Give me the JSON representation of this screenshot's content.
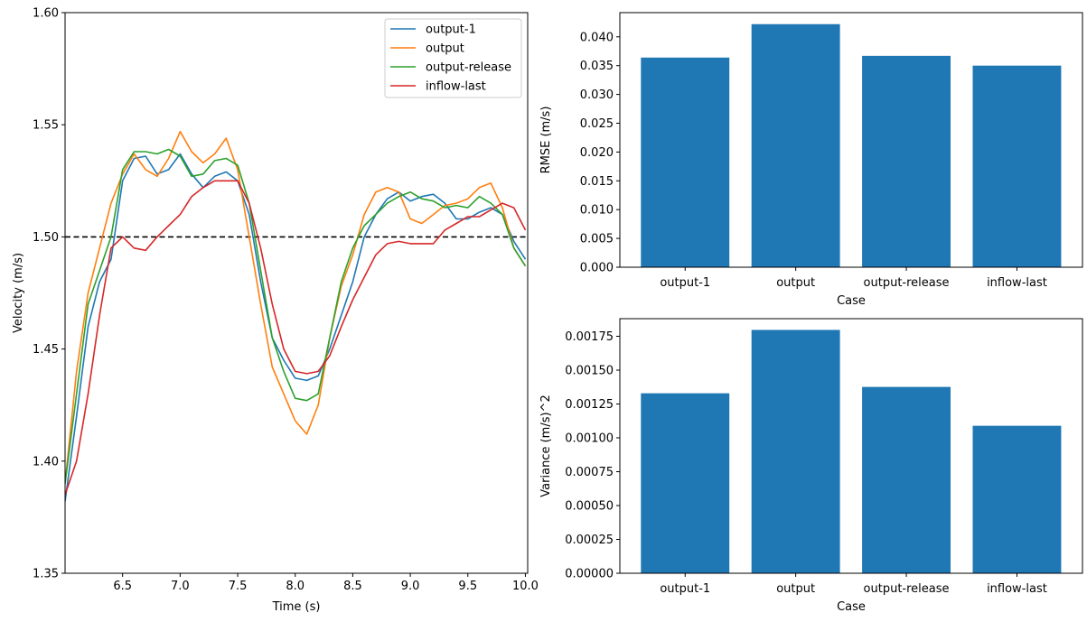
{
  "chart_data": [
    {
      "type": "line",
      "title": "",
      "xlabel": "Time (s)",
      "ylabel": "Velocity (m/s)",
      "xlim": [
        6.0,
        10.02
      ],
      "ylim": [
        1.35,
        1.6
      ],
      "xticks": [
        6.5,
        7.0,
        7.5,
        8.0,
        8.5,
        9.0,
        9.5,
        10.0
      ],
      "xtick_labels": [
        "6.5",
        "7.0",
        "7.5",
        "8.0",
        "8.5",
        "9.0",
        "9.5",
        "10.0"
      ],
      "yticks": [
        1.35,
        1.4,
        1.45,
        1.5,
        1.55,
        1.6
      ],
      "ytick_labels": [
        "1.35",
        "1.40",
        "1.45",
        "1.50",
        "1.55",
        "1.60"
      ],
      "grid": false,
      "legend_position": "top-right",
      "reference_line": {
        "y": 1.5,
        "style": "dashed",
        "color": "#000000"
      },
      "x": [
        6.0,
        6.1,
        6.2,
        6.3,
        6.4,
        6.5,
        6.6,
        6.7,
        6.8,
        6.9,
        7.0,
        7.1,
        7.2,
        7.3,
        7.4,
        7.5,
        7.6,
        7.7,
        7.8,
        7.9,
        8.0,
        8.1,
        8.2,
        8.3,
        8.4,
        8.5,
        8.6,
        8.7,
        8.8,
        8.9,
        9.0,
        9.1,
        9.2,
        9.3,
        9.4,
        9.5,
        9.6,
        9.7,
        9.8,
        9.9,
        10.0
      ],
      "series": [
        {
          "name": "output-1",
          "color": "#1f77b4",
          "values": [
            1.382,
            1.42,
            1.46,
            1.48,
            1.49,
            1.525,
            1.535,
            1.536,
            1.528,
            1.53,
            1.537,
            1.528,
            1.522,
            1.527,
            1.529,
            1.525,
            1.51,
            1.48,
            1.455,
            1.445,
            1.437,
            1.436,
            1.438,
            1.45,
            1.465,
            1.48,
            1.5,
            1.51,
            1.517,
            1.52,
            1.516,
            1.518,
            1.519,
            1.515,
            1.508,
            1.508,
            1.511,
            1.513,
            1.51,
            1.498,
            1.49
          ]
        },
        {
          "name": "output",
          "color": "#ff7f0e",
          "values": [
            1.39,
            1.44,
            1.475,
            1.495,
            1.515,
            1.528,
            1.537,
            1.53,
            1.527,
            1.535,
            1.547,
            1.538,
            1.533,
            1.537,
            1.544,
            1.53,
            1.5,
            1.47,
            1.442,
            1.43,
            1.418,
            1.412,
            1.425,
            1.455,
            1.478,
            1.492,
            1.51,
            1.52,
            1.522,
            1.52,
            1.508,
            1.506,
            1.51,
            1.514,
            1.515,
            1.517,
            1.522,
            1.524,
            1.513,
            1.495,
            1.487
          ]
        },
        {
          "name": "output-release",
          "color": "#2ca02c",
          "values": [
            1.39,
            1.43,
            1.47,
            1.485,
            1.5,
            1.53,
            1.538,
            1.538,
            1.537,
            1.539,
            1.536,
            1.527,
            1.528,
            1.534,
            1.535,
            1.532,
            1.515,
            1.485,
            1.455,
            1.44,
            1.428,
            1.427,
            1.43,
            1.455,
            1.48,
            1.495,
            1.505,
            1.51,
            1.515,
            1.518,
            1.52,
            1.517,
            1.516,
            1.513,
            1.514,
            1.513,
            1.518,
            1.515,
            1.51,
            1.495,
            1.487
          ]
        },
        {
          "name": "inflow-last",
          "color": "#d62728",
          "values": [
            1.385,
            1.4,
            1.43,
            1.465,
            1.495,
            1.5,
            1.495,
            1.494,
            1.5,
            1.505,
            1.51,
            1.518,
            1.522,
            1.525,
            1.525,
            1.525,
            1.515,
            1.495,
            1.47,
            1.45,
            1.44,
            1.439,
            1.44,
            1.447,
            1.46,
            1.472,
            1.482,
            1.492,
            1.497,
            1.498,
            1.497,
            1.497,
            1.497,
            1.503,
            1.506,
            1.509,
            1.509,
            1.512,
            1.515,
            1.513,
            1.503
          ]
        }
      ]
    },
    {
      "type": "bar",
      "title": "",
      "xlabel": "Case",
      "ylabel": "RMSE (m/s)",
      "ylim": [
        0,
        0.0442
      ],
      "yticks": [
        0,
        0.005,
        0.01,
        0.015,
        0.02,
        0.025,
        0.03,
        0.035,
        0.04
      ],
      "ytick_labels": [
        "0.000",
        "0.005",
        "0.010",
        "0.015",
        "0.020",
        "0.025",
        "0.030",
        "0.035",
        "0.040"
      ],
      "categories": [
        "output-1",
        "output",
        "output-release",
        "inflow-last"
      ],
      "values": [
        0.0364,
        0.0422,
        0.0367,
        0.035
      ],
      "color": "#1f77b4"
    },
    {
      "type": "bar",
      "title": "",
      "xlabel": "Case",
      "ylabel": "Variance (m/s)^2",
      "ylim": [
        0,
        0.00188
      ],
      "yticks": [
        0,
        0.00025,
        0.0005,
        0.00075,
        0.001,
        0.00125,
        0.0015,
        0.00175
      ],
      "ytick_labels": [
        "0.00000",
        "0.00025",
        "0.00050",
        "0.00075",
        "0.00100",
        "0.00125",
        "0.00150",
        "0.00175"
      ],
      "categories": [
        "output-1",
        "output",
        "output-release",
        "inflow-last"
      ],
      "values": [
        0.001329,
        0.001797,
        0.001376,
        0.001089
      ],
      "color": "#1f77b4"
    }
  ]
}
